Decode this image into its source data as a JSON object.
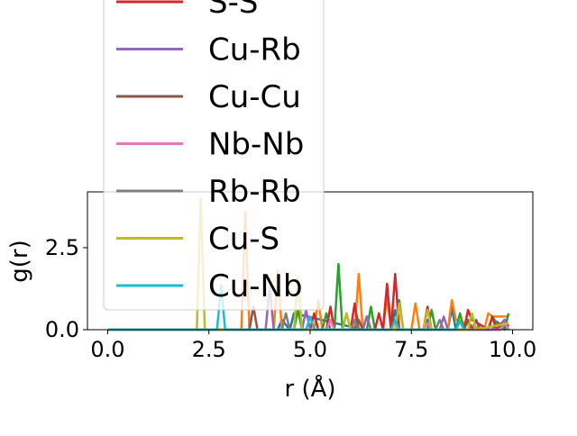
{
  "chart_data": {
    "type": "line",
    "title": "",
    "xlabel": "r (Å)",
    "ylabel": "g(r)",
    "xlim": [
      -0.5,
      10.5
    ],
    "ylim": [
      0,
      4.2
    ],
    "xticks": [
      "0.0",
      "2.5",
      "5.0",
      "7.5",
      "10.0"
    ],
    "xtick_values": [
      0,
      2.5,
      5,
      7.5,
      10
    ],
    "yticks": [
      "0.0",
      "2.5"
    ],
    "ytick_values": [
      0,
      2.5
    ],
    "grid": false,
    "legend_placement": "upper-left, overflowing above plot",
    "series": [
      {
        "name": "",
        "color": "#1f77b4",
        "x": [
          0,
          4.2,
          4.3,
          4.5,
          4.6,
          6.3,
          6.4,
          6.5,
          7.0,
          7.1,
          7.2,
          7.8,
          7.9,
          8.0,
          8.4,
          8.5,
          8.6,
          9.0,
          9.1,
          9.2,
          9.5,
          9.6,
          9.9
        ],
        "y": [
          0,
          0,
          0.3,
          0,
          0.5,
          0,
          0.4,
          0,
          0,
          0.6,
          0,
          0,
          0.3,
          0,
          0,
          0.65,
          0,
          0,
          0.3,
          0,
          0,
          0.25,
          0
        ]
      },
      {
        "name": "",
        "color": "#ff7f0e",
        "x": [
          0,
          3.3,
          3.4,
          3.5,
          4.1,
          4.2,
          4.3,
          5.1,
          5.2,
          5.3,
          5.8,
          5.9,
          6.0,
          6.1,
          6.2,
          6.3,
          6.8,
          6.9,
          7.0,
          7.5,
          7.6,
          7.7,
          8.4,
          8.5,
          8.6,
          9.3,
          9.4,
          9.5,
          9.9
        ],
        "y": [
          0,
          0,
          3.6,
          0,
          0,
          1.8,
          0,
          0,
          0.9,
          0,
          0,
          0.5,
          0,
          0,
          1.7,
          0,
          0,
          1.0,
          0,
          0,
          0.8,
          0,
          0,
          0.9,
          0.3,
          0,
          0.5,
          0.4,
          0.4
        ]
      },
      {
        "name": "",
        "color": "#2ca02c",
        "x": [
          0,
          4.6,
          4.7,
          4.8,
          5.3,
          5.4,
          5.5,
          5.6,
          5.7,
          5.8,
          6.4,
          6.5,
          6.6,
          7.1,
          7.2,
          7.3,
          7.9,
          8.0,
          8.1,
          8.6,
          8.7,
          8.8,
          9.4,
          9.5,
          9.6,
          9.8,
          9.9
        ],
        "y": [
          0,
          0,
          0.6,
          0,
          0,
          0.5,
          0,
          0,
          2.0,
          0,
          0,
          0.7,
          0,
          0,
          0.9,
          0,
          0,
          0.6,
          0,
          0,
          0.5,
          0,
          0,
          0.4,
          0.2,
          0,
          0.5
        ]
      },
      {
        "name": "S-S",
        "color": "#d62728",
        "x": [
          0,
          5.0,
          5.1,
          5.2,
          5.4,
          5.5,
          5.6,
          6.0,
          6.1,
          6.2,
          6.6,
          6.7,
          6.8,
          6.9,
          7.0,
          7.1,
          7.2,
          7.3,
          7.8,
          7.9,
          8.0,
          8.8,
          8.9,
          9.0,
          9.4,
          9.5,
          9.6,
          9.8,
          9.9
        ],
        "y": [
          0,
          0,
          0.5,
          0,
          0,
          0.7,
          0,
          0,
          0.8,
          0,
          0,
          0.5,
          0,
          1.4,
          0,
          1.7,
          0,
          0,
          0,
          0.7,
          0,
          0,
          0.6,
          0.3,
          0,
          0.4,
          0,
          0.3,
          0.1
        ]
      },
      {
        "name": "Cu-Rb",
        "color": "#9467bd",
        "x": [
          0,
          3.9,
          4.0,
          4.1,
          4.8,
          4.9,
          5.0,
          6.3,
          6.4,
          6.5,
          8.2,
          8.3,
          8.4,
          9.7,
          9.8,
          9.9
        ],
        "y": [
          0,
          0,
          1.3,
          0,
          0,
          0.6,
          0,
          0,
          0.4,
          0,
          0,
          0.4,
          0,
          0,
          0.3,
          0
        ]
      },
      {
        "name": "Cu-Cu",
        "color": "#8c564b",
        "x": [
          0,
          3.5,
          3.6,
          3.7,
          6.1,
          6.2,
          6.3,
          8.8,
          8.9,
          9.0
        ],
        "y": [
          0,
          0,
          0.7,
          0,
          0,
          0.3,
          0,
          0,
          0.3,
          0
        ]
      },
      {
        "name": "Nb-Nb",
        "color": "#e377c2",
        "x": [
          0,
          5.4,
          5.5,
          5.6,
          7.8,
          7.9,
          8.0,
          9.7,
          9.8,
          9.9
        ],
        "y": [
          0,
          0,
          0.3,
          0,
          0,
          0.2,
          0,
          0,
          0.2,
          0
        ]
      },
      {
        "name": "Rb-Rb",
        "color": "#7f7f7f",
        "x": [
          0,
          4.3,
          4.4,
          4.5,
          6.0,
          6.1,
          6.2,
          8.1,
          8.2,
          8.3
        ],
        "y": [
          0,
          0,
          0.5,
          0,
          0,
          0.3,
          0,
          0,
          0.3,
          0
        ]
      },
      {
        "name": "Cu-S",
        "color": "#bcbd22",
        "x": [
          0,
          2.2,
          2.3,
          2.4,
          4.6,
          4.7,
          4.8,
          5.8,
          5.9,
          6.0,
          7.1,
          7.2,
          7.3,
          7.8,
          7.9,
          8.0,
          8.9,
          9.0,
          9.1,
          9.9
        ],
        "y": [
          0,
          0,
          4.0,
          0,
          0,
          1.6,
          0,
          0,
          0.5,
          0,
          0,
          0.8,
          0,
          0,
          0.6,
          0,
          0,
          0.5,
          0,
          0.2
        ]
      },
      {
        "name": "Cu-Nb",
        "color": "#17becf",
        "x": [
          0,
          2.7,
          2.8,
          2.9,
          4.9,
          5.0,
          5.1,
          7.0,
          7.1,
          7.2,
          8.6,
          8.7,
          8.8
        ],
        "y": [
          0,
          0,
          1.35,
          0,
          0,
          0.4,
          0,
          0,
          0.3,
          0,
          0,
          0.25,
          0
        ]
      }
    ]
  }
}
